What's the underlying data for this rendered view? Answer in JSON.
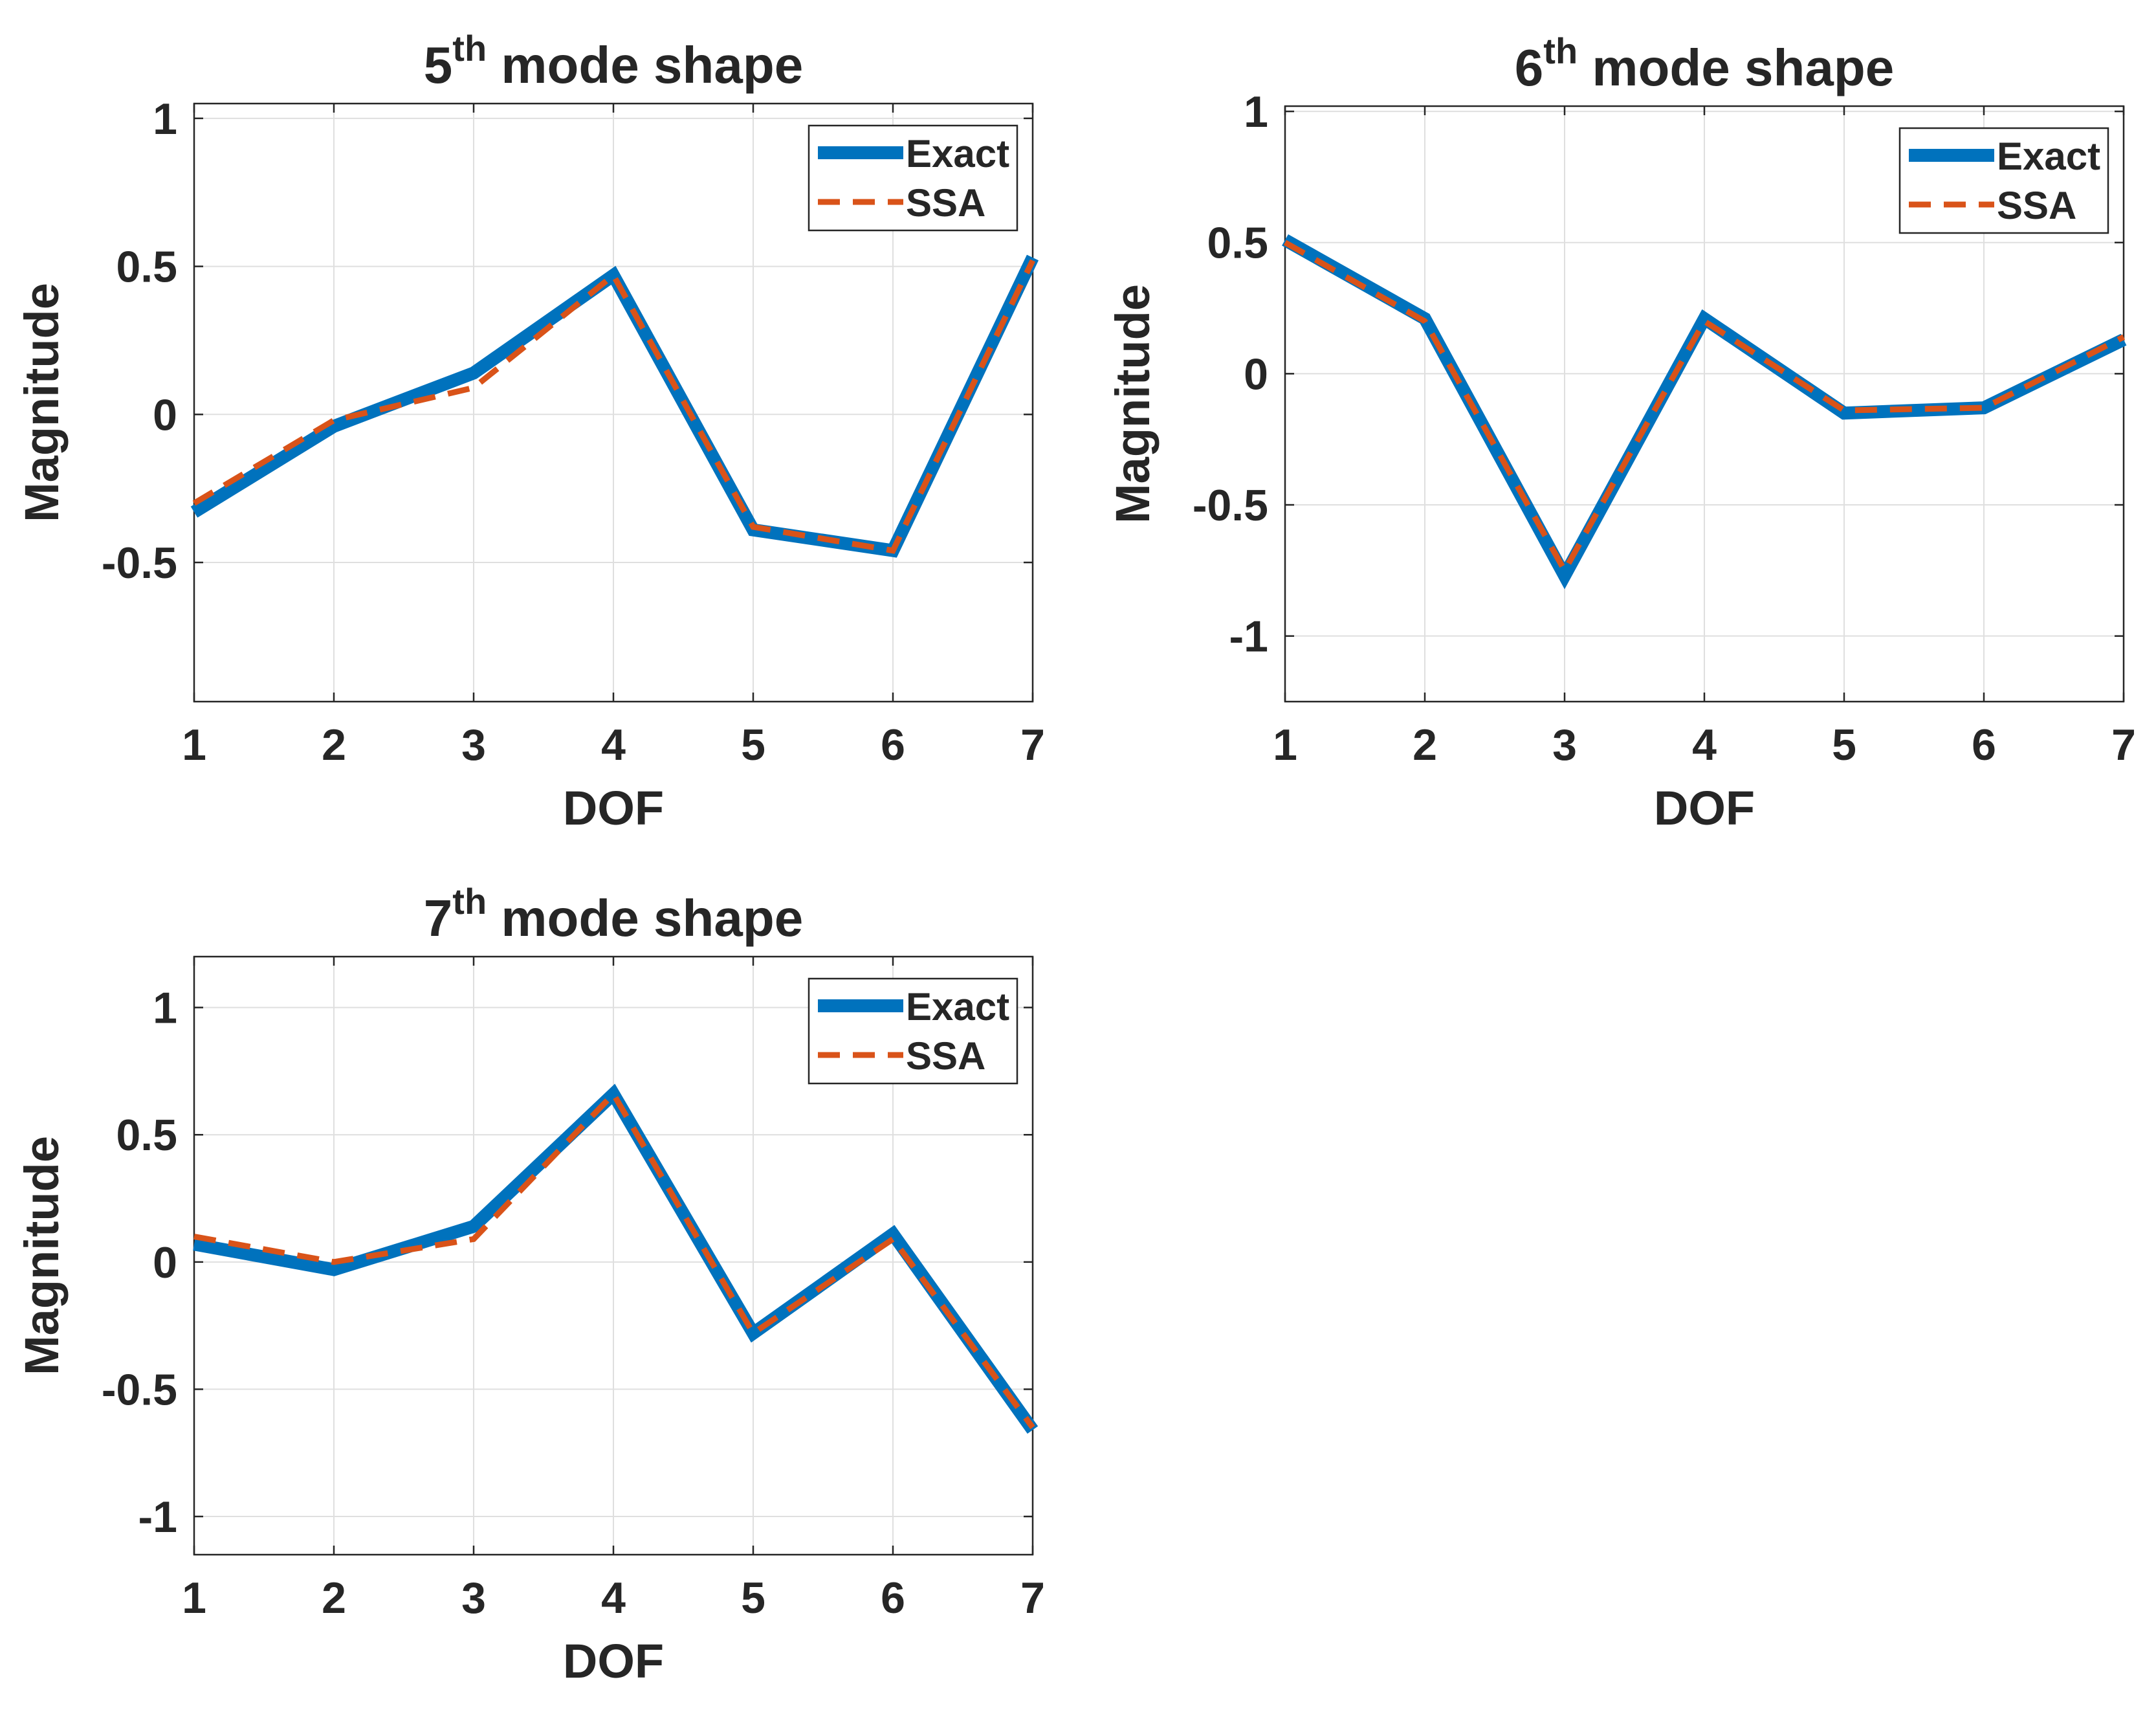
{
  "colors": {
    "exact": "#0072BD",
    "ssa": "#D95319",
    "grid": "#DFDFDF",
    "axis": "#262626"
  },
  "chart_data": [
    {
      "type": "line",
      "title": {
        "prefix": "5",
        "sup": "th",
        "rest": " mode shape"
      },
      "xlabel": "DOF",
      "ylabel": "Magnitude",
      "xlim": [
        1,
        7
      ],
      "ylim": [
        -0.97,
        1.05
      ],
      "xticks": [
        1,
        2,
        3,
        4,
        5,
        6,
        7
      ],
      "xtick_labels": [
        "1",
        "2",
        "3",
        "4",
        "5",
        "6",
        "7"
      ],
      "yticks": [
        -0.5,
        0,
        0.5,
        1
      ],
      "ytick_labels": [
        "-0.5",
        "0",
        "0.5",
        "1"
      ],
      "legend_position": "top-right",
      "series": [
        {
          "name": "Exact",
          "style": "solid",
          "x": [
            1,
            2,
            3,
            4,
            5,
            6,
            7
          ],
          "values": [
            -0.33,
            -0.04,
            0.14,
            0.47,
            -0.39,
            -0.46,
            0.53
          ]
        },
        {
          "name": "SSA",
          "style": "dashed",
          "x": [
            1,
            2,
            3,
            4,
            5,
            6,
            7
          ],
          "values": [
            -0.3,
            -0.02,
            0.09,
            0.47,
            -0.38,
            -0.46,
            0.52
          ]
        }
      ]
    },
    {
      "type": "line",
      "title": {
        "prefix": "6",
        "sup": "th",
        "rest": " mode shape"
      },
      "xlabel": "DOF",
      "ylabel": "Magnitude",
      "xlim": [
        1,
        7
      ],
      "ylim": [
        -1.25,
        1.02
      ],
      "xticks": [
        1,
        2,
        3,
        4,
        5,
        6,
        7
      ],
      "xtick_labels": [
        "1",
        "2",
        "3",
        "4",
        "5",
        "6",
        "7"
      ],
      "yticks": [
        -1,
        -0.5,
        0,
        0.5,
        1
      ],
      "ytick_labels": [
        "-1",
        "-0.5",
        "0",
        "0.5",
        "1"
      ],
      "legend_position": "top-right",
      "series": [
        {
          "name": "Exact",
          "style": "solid",
          "x": [
            1,
            2,
            3,
            4,
            5,
            6,
            7
          ],
          "values": [
            0.51,
            0.21,
            -0.77,
            0.21,
            -0.15,
            -0.13,
            0.13
          ]
        },
        {
          "name": "SSA",
          "style": "dashed",
          "x": [
            1,
            2,
            3,
            4,
            5,
            6,
            7
          ],
          "values": [
            0.5,
            0.2,
            -0.75,
            0.2,
            -0.14,
            -0.13,
            0.14
          ]
        }
      ]
    },
    {
      "type": "line",
      "title": {
        "prefix": "7",
        "sup": "th",
        "rest": " mode shape"
      },
      "xlabel": "DOF",
      "ylabel": "Magnitude",
      "xlim": [
        1,
        7
      ],
      "ylim": [
        -1.15,
        1.2
      ],
      "xticks": [
        1,
        2,
        3,
        4,
        5,
        6,
        7
      ],
      "xtick_labels": [
        "1",
        "2",
        "3",
        "4",
        "5",
        "6",
        "7"
      ],
      "yticks": [
        -1,
        -0.5,
        0,
        0.5,
        1
      ],
      "ytick_labels": [
        "-1",
        "-0.5",
        "0",
        "0.5",
        "1"
      ],
      "legend_position": "top-right",
      "series": [
        {
          "name": "Exact",
          "style": "solid",
          "x": [
            1,
            2,
            3,
            4,
            5,
            6,
            7
          ],
          "values": [
            0.07,
            -0.03,
            0.14,
            0.66,
            -0.28,
            0.11,
            -0.66
          ]
        },
        {
          "name": "SSA",
          "style": "dashed",
          "x": [
            1,
            2,
            3,
            4,
            5,
            6,
            7
          ],
          "values": [
            0.1,
            0.0,
            0.09,
            0.66,
            -0.28,
            0.09,
            -0.65
          ]
        }
      ]
    }
  ]
}
